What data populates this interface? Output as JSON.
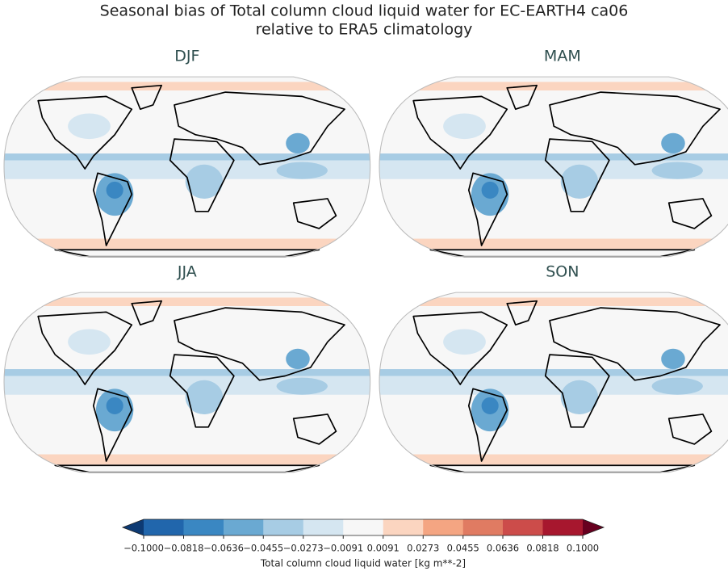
{
  "chart_data": {
    "type": "map",
    "title": "Seasonal bias of Total column cloud liquid water for EC-EARTH4 ca06",
    "subtitle": "relative to ERA5 climatology",
    "panels": [
      {
        "title": "DJF"
      },
      {
        "title": "MAM"
      },
      {
        "title": "JJA"
      },
      {
        "title": "SON"
      }
    ],
    "colorbar": {
      "label": "Total column cloud liquid water [kg m**-2]",
      "ticks": [
        {
          "value": -0.1,
          "label": "−0.1000"
        },
        {
          "value": -0.0818,
          "label": "−0.0818"
        },
        {
          "value": -0.0636,
          "label": "−0.0636"
        },
        {
          "value": -0.0455,
          "label": "−0.0455"
        },
        {
          "value": -0.0273,
          "label": "−0.0273"
        },
        {
          "value": -0.0091,
          "label": "−0.0091"
        },
        {
          "value": 0.0091,
          "label": "0.0091"
        },
        {
          "value": 0.0273,
          "label": "0.0273"
        },
        {
          "value": 0.0455,
          "label": "0.0455"
        },
        {
          "value": 0.0636,
          "label": "0.0636"
        },
        {
          "value": 0.0818,
          "label": "0.0818"
        },
        {
          "value": 0.1,
          "label": "0.1000"
        }
      ],
      "colors": [
        "#2166ac",
        "#3a87c2",
        "#6aa9d2",
        "#a7cce4",
        "#d5e6f1",
        "#f7f7f7",
        "#fbd5c0",
        "#f4a582",
        "#e07b62",
        "#cc4c4a",
        "#a7172e"
      ],
      "extend_colors": [
        "#0d3a73",
        "#67001f"
      ]
    }
  }
}
